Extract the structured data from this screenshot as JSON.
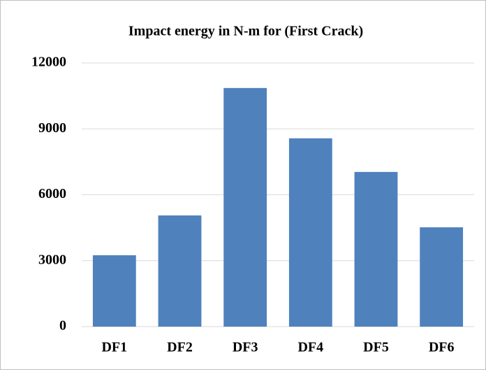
{
  "chart_data": {
    "type": "bar",
    "title": "Impact energy in N-m for (First Crack)",
    "categories": [
      "DF1",
      "DF2",
      "DF3",
      "DF4",
      "DF5",
      "DF6"
    ],
    "values": [
      3250,
      5060,
      10860,
      8570,
      7040,
      4520
    ],
    "color": "#4f81bd",
    "ylim": [
      0,
      12000
    ],
    "yticks": [
      0,
      3000,
      6000,
      9000,
      12000
    ],
    "grid": true
  }
}
